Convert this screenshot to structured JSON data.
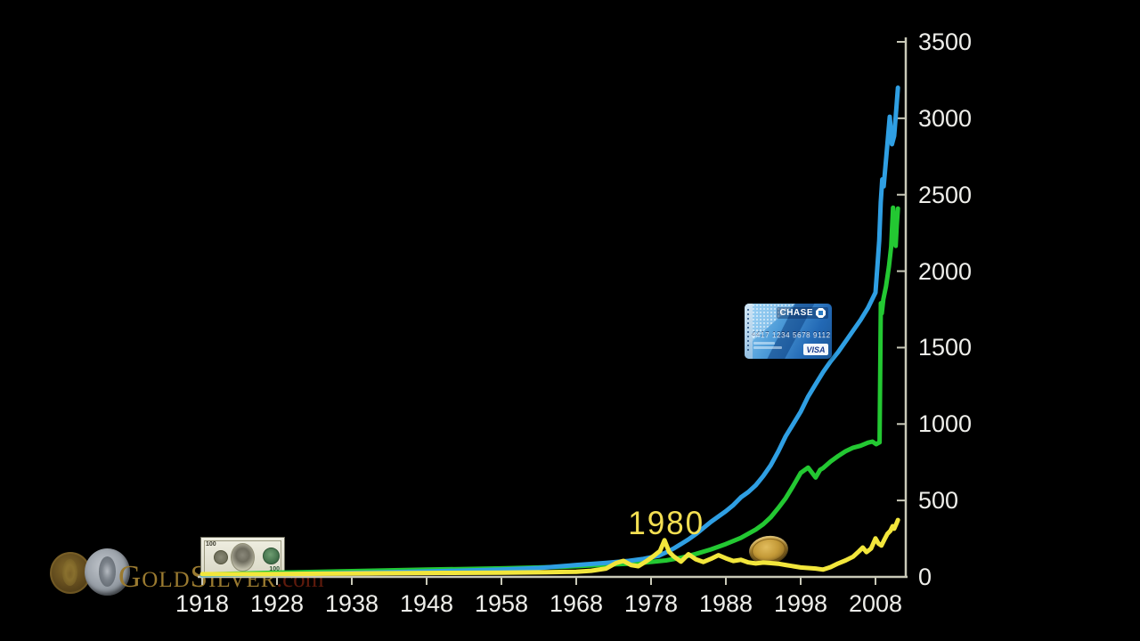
{
  "background_color": "#000000",
  "watermark": {
    "brand": "GoldSilver",
    "domain": ".com",
    "icons": [
      "gold-coin",
      "silver-coin"
    ]
  },
  "images": {
    "dollar_bill": {
      "denomination": "100"
    },
    "chase_card": {
      "brand": "CHASE",
      "number": "4417 1234 5678 9112",
      "network": "VISA"
    },
    "gold_coin_on_chart": true
  },
  "chart_data": {
    "type": "line",
    "title": "",
    "xlabel": "",
    "ylabel": "",
    "grid": false,
    "legend": null,
    "x_axis": {
      "ticks": [
        1918,
        1928,
        1938,
        1948,
        1958,
        1968,
        1978,
        1988,
        1998,
        2008
      ],
      "range": [
        1918,
        2011
      ]
    },
    "y_axis": {
      "ticks": [
        0,
        500,
        1000,
        1500,
        2000,
        2500,
        3000,
        3500
      ],
      "range": [
        0,
        3500
      ]
    },
    "annotations": [
      {
        "text": "1980",
        "color": "#f3df52",
        "anchor_year": 1980
      }
    ],
    "series": [
      {
        "name": "green",
        "color": "#23c832",
        "points": [
          [
            1918,
            16
          ],
          [
            1928,
            28
          ],
          [
            1938,
            38
          ],
          [
            1948,
            48
          ],
          [
            1958,
            56
          ],
          [
            1963,
            62
          ],
          [
            1966,
            66
          ],
          [
            1968,
            70
          ],
          [
            1972,
            80
          ],
          [
            1976,
            88
          ],
          [
            1980,
            108
          ],
          [
            1982,
            125
          ],
          [
            1984,
            150
          ],
          [
            1986,
            180
          ],
          [
            1988,
            215
          ],
          [
            1990,
            255
          ],
          [
            1992,
            310
          ],
          [
            1993,
            345
          ],
          [
            1994,
            390
          ],
          [
            1995,
            450
          ],
          [
            1996,
            515
          ],
          [
            1997,
            595
          ],
          [
            1998,
            680
          ],
          [
            1999,
            715
          ],
          [
            2000,
            650
          ],
          [
            2000.6,
            700
          ],
          [
            2001,
            712
          ],
          [
            2002,
            755
          ],
          [
            2003,
            790
          ],
          [
            2004,
            822
          ],
          [
            2005,
            845
          ],
          [
            2006,
            858
          ],
          [
            2007,
            878
          ],
          [
            2007.6,
            885
          ],
          [
            2008.1,
            868
          ],
          [
            2008.45,
            878
          ],
          [
            2008.55,
            880
          ],
          [
            2008.72,
            1790
          ],
          [
            2008.85,
            1725
          ],
          [
            2009.05,
            1815
          ],
          [
            2009.4,
            1900
          ],
          [
            2009.8,
            2030
          ],
          [
            2010.1,
            2160
          ],
          [
            2010.35,
            2415
          ],
          [
            2010.55,
            2230
          ],
          [
            2010.7,
            2165
          ],
          [
            2010.85,
            2300
          ],
          [
            2011,
            2410
          ]
        ]
      },
      {
        "name": "blue",
        "color": "#2f9fe3",
        "points": [
          [
            1918,
            12
          ],
          [
            1930,
            20
          ],
          [
            1940,
            28
          ],
          [
            1950,
            38
          ],
          [
            1958,
            48
          ],
          [
            1963,
            58
          ],
          [
            1966,
            70
          ],
          [
            1968,
            78
          ],
          [
            1972,
            92
          ],
          [
            1975,
            105
          ],
          [
            1977,
            118
          ],
          [
            1979,
            138
          ],
          [
            1980,
            160
          ],
          [
            1981,
            185
          ],
          [
            1982,
            215
          ],
          [
            1983,
            245
          ],
          [
            1984,
            280
          ],
          [
            1985,
            320
          ],
          [
            1986,
            360
          ],
          [
            1987,
            395
          ],
          [
            1988,
            430
          ],
          [
            1989,
            470
          ],
          [
            1990,
            520
          ],
          [
            1991,
            555
          ],
          [
            1992,
            600
          ],
          [
            1993,
            660
          ],
          [
            1994,
            730
          ],
          [
            1995,
            820
          ],
          [
            1996,
            920
          ],
          [
            1997,
            1000
          ],
          [
            1998,
            1080
          ],
          [
            1999,
            1180
          ],
          [
            2000,
            1260
          ],
          [
            2001,
            1340
          ],
          [
            2002,
            1410
          ],
          [
            2003,
            1470
          ],
          [
            2004,
            1540
          ],
          [
            2005,
            1610
          ],
          [
            2006,
            1680
          ],
          [
            2007,
            1760
          ],
          [
            2008,
            1860
          ],
          [
            2008.3,
            2060
          ],
          [
            2008.5,
            2200
          ],
          [
            2008.7,
            2450
          ],
          [
            2008.9,
            2600
          ],
          [
            2009.1,
            2555
          ],
          [
            2009.5,
            2780
          ],
          [
            2009.9,
            3010
          ],
          [
            2010.2,
            2830
          ],
          [
            2010.5,
            2885
          ],
          [
            2010.8,
            3070
          ],
          [
            2011,
            3200
          ]
        ]
      },
      {
        "name": "yellow",
        "color": "#f2e63c",
        "points": [
          [
            1918,
            18
          ],
          [
            1926,
            18
          ],
          [
            1934,
            21
          ],
          [
            1942,
            24
          ],
          [
            1950,
            26
          ],
          [
            1958,
            28
          ],
          [
            1964,
            30
          ],
          [
            1968,
            34
          ],
          [
            1970,
            40
          ],
          [
            1972,
            55
          ],
          [
            1973.3,
            90
          ],
          [
            1974.3,
            105
          ],
          [
            1975.3,
            78
          ],
          [
            1976.3,
            70
          ],
          [
            1977.3,
            100
          ],
          [
            1978.3,
            135
          ],
          [
            1979.2,
            170
          ],
          [
            1979.8,
            240
          ],
          [
            1980.4,
            165
          ],
          [
            1981,
            135
          ],
          [
            1982,
            100
          ],
          [
            1983,
            148
          ],
          [
            1984,
            115
          ],
          [
            1985,
            98
          ],
          [
            1986,
            118
          ],
          [
            1987,
            142
          ],
          [
            1988,
            122
          ],
          [
            1989,
            104
          ],
          [
            1990,
            112
          ],
          [
            1991,
            95
          ],
          [
            1992,
            88
          ],
          [
            1993,
            94
          ],
          [
            1994,
            90
          ],
          [
            1995,
            86
          ],
          [
            1996,
            78
          ],
          [
            1997,
            70
          ],
          [
            1998,
            62
          ],
          [
            1999,
            58
          ],
          [
            2000,
            55
          ],
          [
            2001,
            48
          ],
          [
            2002,
            64
          ],
          [
            2003,
            88
          ],
          [
            2004,
            108
          ],
          [
            2005,
            132
          ],
          [
            2005.8,
            168
          ],
          [
            2006.3,
            192
          ],
          [
            2006.8,
            162
          ],
          [
            2007.4,
            185
          ],
          [
            2008,
            252
          ],
          [
            2008.4,
            218
          ],
          [
            2008.8,
            205
          ],
          [
            2009.2,
            245
          ],
          [
            2009.6,
            282
          ],
          [
            2010,
            302
          ],
          [
            2010.3,
            332
          ],
          [
            2010.5,
            315
          ],
          [
            2010.8,
            348
          ],
          [
            2011,
            372
          ]
        ]
      }
    ],
    "style": {
      "axis_color": "#c9c9b8",
      "label_color": "#eeeeea",
      "line_width": 5
    }
  }
}
